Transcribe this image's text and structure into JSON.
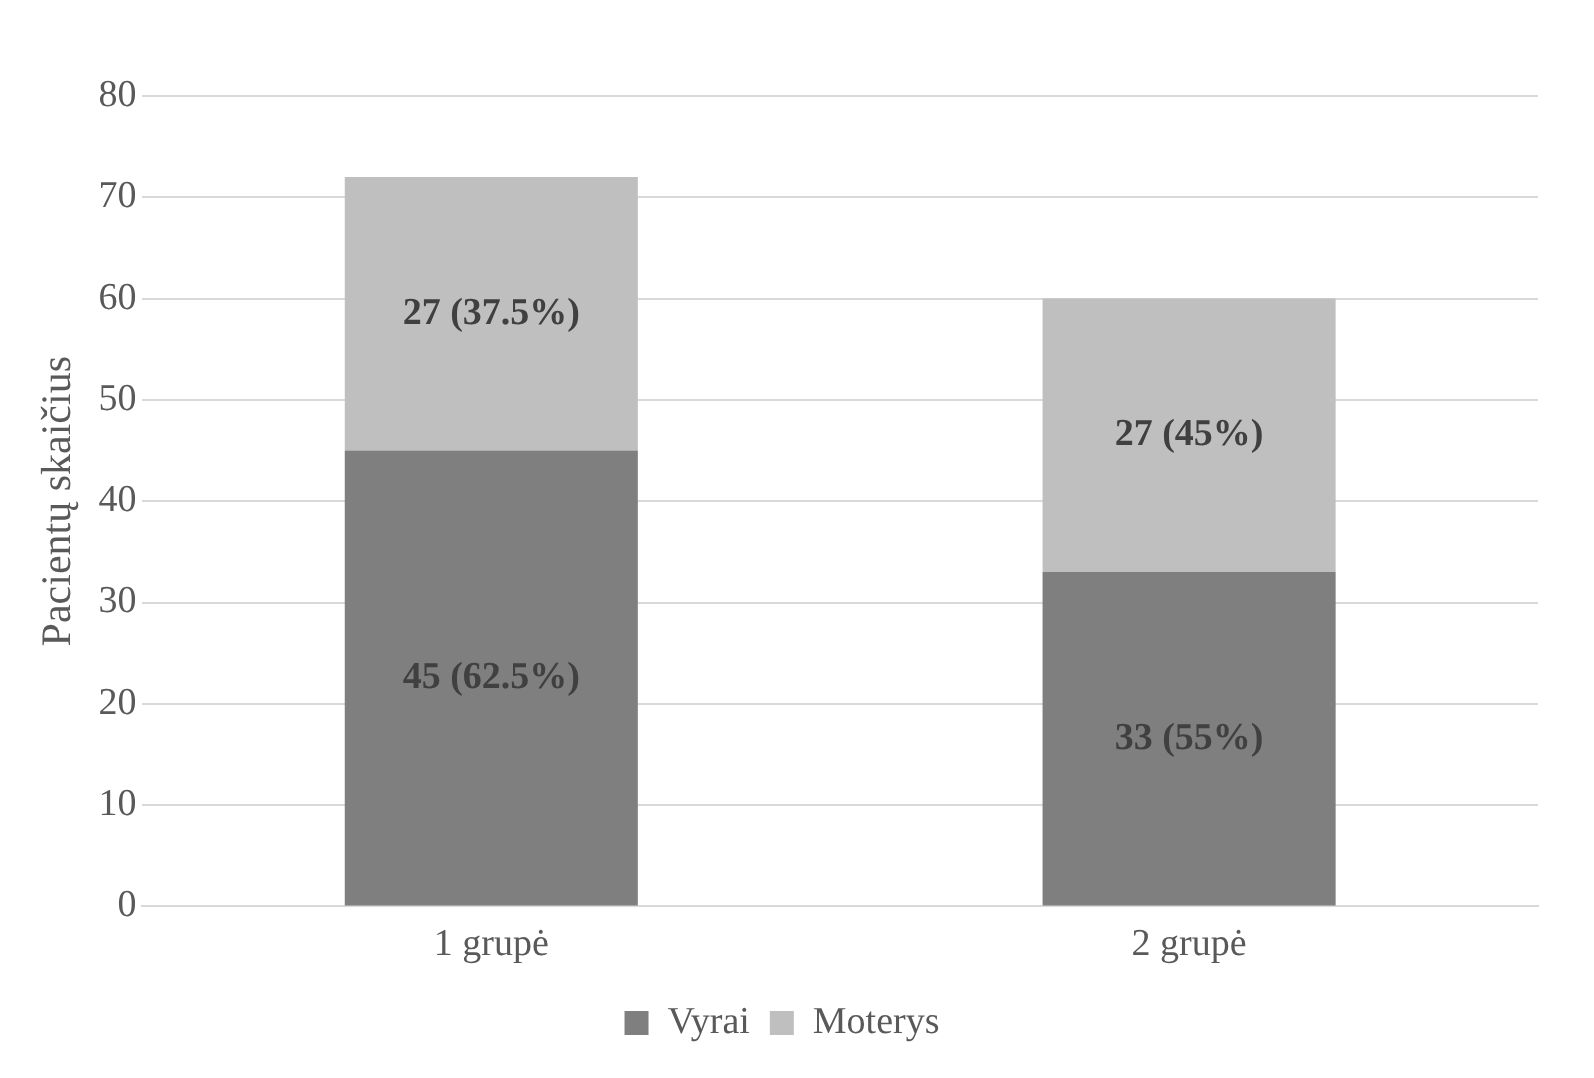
{
  "chart_data": {
    "type": "bar",
    "stacked": true,
    "ylabel": "Pacientų skaičius",
    "categories": [
      "1 grupė",
      "2 grupė"
    ],
    "series": [
      {
        "name": "Vyrai",
        "color": "#7f7f7f",
        "values": [
          45,
          33
        ],
        "value_labels": [
          "45 (62.5%)",
          "33 (55%)"
        ]
      },
      {
        "name": "Moterys",
        "color": "#bfbfbf",
        "values": [
          27,
          27
        ],
        "value_labels": [
          "27 (37.5%)",
          "27 (45%)"
        ]
      }
    ],
    "ylim": [
      0,
      80
    ],
    "yticks": [
      0,
      10,
      20,
      30,
      40,
      50,
      60,
      70,
      80
    ],
    "grid": "y",
    "legend": "bottom"
  }
}
